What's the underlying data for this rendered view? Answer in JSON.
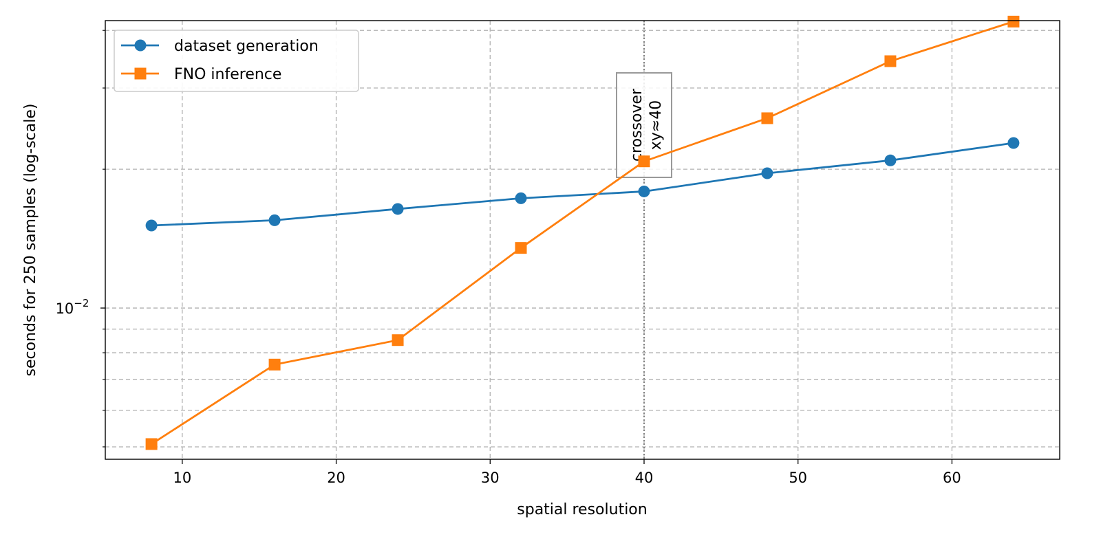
{
  "chart_data": {
    "type": "line",
    "title": "",
    "xlabel": "spatial resolution",
    "ylabel": "seconds for 250 samples (log-scale)",
    "xlim": [
      5,
      67
    ],
    "ylim": [
      0.0047,
      0.042
    ],
    "yscale": "log",
    "grid": true,
    "legend_position": "top-left",
    "x_ticks": [
      10,
      20,
      30,
      40,
      50,
      60
    ],
    "y_major_ticks": [
      {
        "value": 0.01,
        "base": "10",
        "exponent": "−2"
      }
    ],
    "y_minor_ticks": [
      0.005,
      0.006,
      0.007,
      0.008,
      0.009,
      0.02,
      0.03,
      0.04
    ],
    "x": [
      8,
      16,
      24,
      32,
      40,
      48,
      56,
      64
    ],
    "series": [
      {
        "name": "dataset generation",
        "color": "#1f77b4",
        "marker": "circle",
        "values": [
          0.0151,
          0.0155,
          0.0164,
          0.0173,
          0.0179,
          0.0196,
          0.0209,
          0.0228
        ]
      },
      {
        "name": "FNO inference",
        "color": "#ff7f0e",
        "marker": "square",
        "values": [
          0.00507,
          0.00754,
          0.00852,
          0.0135,
          0.0208,
          0.0258,
          0.0343,
          0.0418
        ]
      }
    ],
    "annotation": {
      "x": 40,
      "lines": [
        "crossover",
        "xy≈40"
      ]
    }
  }
}
